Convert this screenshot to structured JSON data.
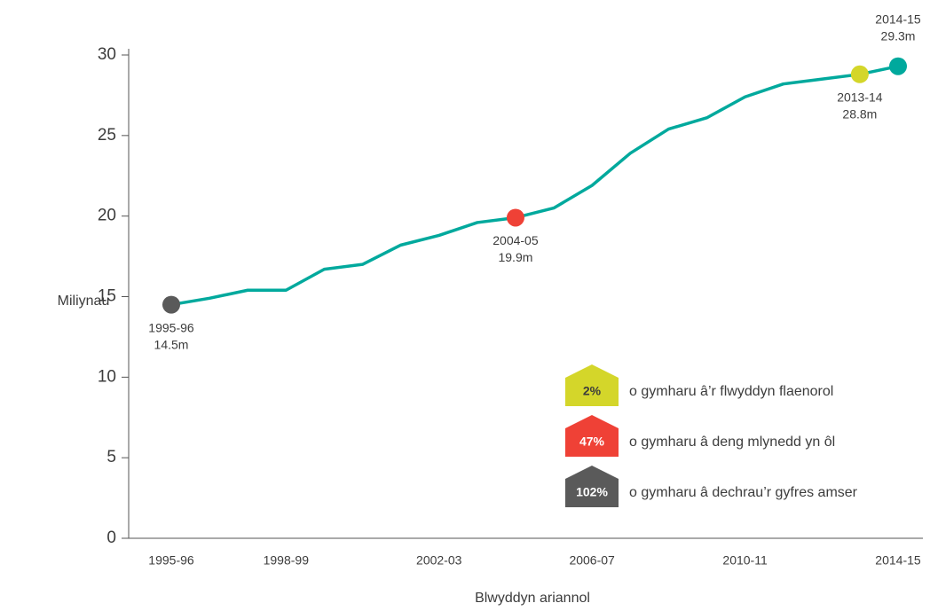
{
  "chart_data": {
    "type": "line",
    "y_label": "Miliynau",
    "x_label": "Blwyddyn ariannol",
    "categories": [
      "1995-96",
      null,
      null,
      "1998-99",
      null,
      null,
      null,
      "2002-03",
      null,
      null,
      null,
      "2006-07",
      null,
      null,
      null,
      "2010-11",
      null,
      null,
      null,
      "2014-15"
    ],
    "series": [
      {
        "color": "#00a99d",
        "values": [
          14.5,
          14.9,
          15.4,
          15.4,
          16.7,
          17.0,
          18.2,
          18.8,
          19.6,
          19.9,
          20.5,
          21.9,
          23.9,
          25.4,
          26.1,
          27.4,
          28.2,
          28.5,
          28.8,
          29.3
        ]
      }
    ],
    "highlights": [
      {
        "label": "1995-96",
        "value_label": "14.5m",
        "color": "#5a5a5a"
      },
      null,
      null,
      null,
      null,
      null,
      null,
      null,
      null,
      {
        "label": "2004-05",
        "value_label": "19.9m",
        "color": "#ef4136"
      },
      null,
      null,
      null,
      null,
      null,
      null,
      null,
      null,
      {
        "label": "2013-14",
        "value_label": "28.8m",
        "color": "#d4d62a"
      },
      {
        "label": "2014-15",
        "value_label": "29.3m",
        "color": "#00a99d"
      }
    ],
    "ylim": [
      0,
      30
    ],
    "yticks": [
      0,
      5,
      10,
      15,
      20,
      25,
      30
    ],
    "callouts": [
      {
        "label": "2%",
        "text": "o gymharu â’r flwyddyn flaenorol",
        "color": "#d4d62a"
      },
      {
        "label": "47%",
        "text": "o gymharu â deng mlynedd yn ôl",
        "color": "#ef4136"
      },
      {
        "label": "102%",
        "text": "o gymharu â dechrau’r gyfres amser",
        "color": "#5a5a5a"
      }
    ]
  }
}
